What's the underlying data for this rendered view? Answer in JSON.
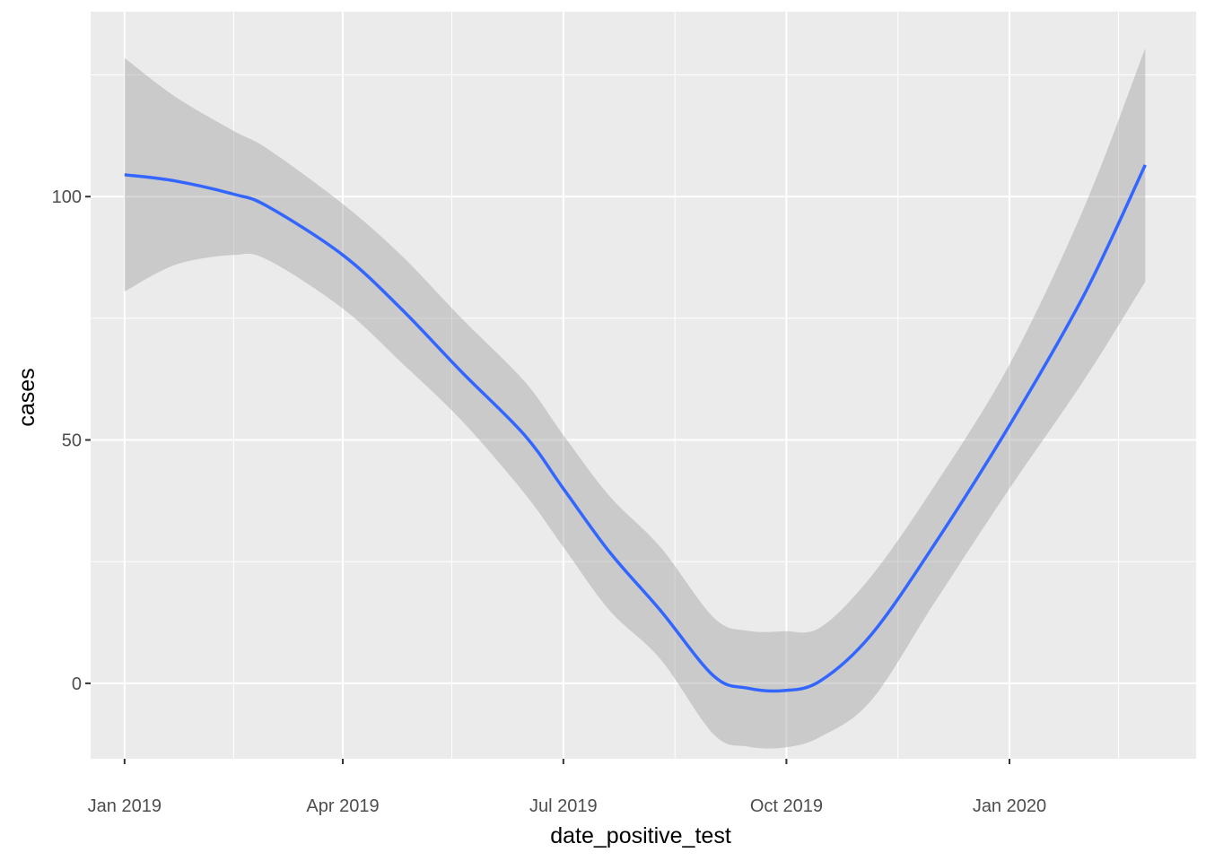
{
  "chart_data": {
    "type": "line",
    "title": "",
    "xlabel": "date_positive_test",
    "ylabel": "cases",
    "grid": true,
    "legend": "none",
    "xlim": [
      "2018-12-18",
      "2020-03-18"
    ],
    "ylim": [
      -15.5,
      138
    ],
    "x_ticks": [
      {
        "date": "2019-01-01",
        "label": "Jan 2019"
      },
      {
        "date": "2019-04-01",
        "label": "Apr 2019"
      },
      {
        "date": "2019-07-01",
        "label": "Jul 2019"
      },
      {
        "date": "2019-10-01",
        "label": "Oct 2019"
      },
      {
        "date": "2020-01-01",
        "label": "Jan 2020"
      }
    ],
    "x_minor_ticks": [
      "2019-02-15",
      "2019-05-16",
      "2019-08-16",
      "2019-11-16",
      "2020-02-15"
    ],
    "y_ticks": [
      0,
      50,
      100
    ],
    "y_minor_ticks": [
      25,
      75,
      125
    ],
    "series": [
      {
        "style": "smooth-with-confidence-band",
        "color": "#3366FF",
        "band_color": "#999999",
        "points": [
          {
            "x": "2019-01-01",
            "y": 104.5,
            "lo": 80.5,
            "hi": 128.5
          },
          {
            "x": "2019-01-22",
            "y": 103.2,
            "lo": 86.0,
            "hi": 120.5
          },
          {
            "x": "2019-02-15",
            "y": 100.5,
            "lo": 88.0,
            "hi": 113.5
          },
          {
            "x": "2019-03-01",
            "y": 98.0,
            "lo": 87.0,
            "hi": 109.8
          },
          {
            "x": "2019-04-01",
            "y": 88.0,
            "lo": 77.0,
            "hi": 98.5
          },
          {
            "x": "2019-04-25",
            "y": 77.0,
            "lo": 66.0,
            "hi": 88.0
          },
          {
            "x": "2019-05-20",
            "y": 64.0,
            "lo": 54.0,
            "hi": 75.0
          },
          {
            "x": "2019-06-15",
            "y": 51.0,
            "lo": 39.0,
            "hi": 62.0
          },
          {
            "x": "2019-07-01",
            "y": 40.0,
            "lo": 28.0,
            "hi": 51.0
          },
          {
            "x": "2019-07-20",
            "y": 27.0,
            "lo": 15.0,
            "hi": 38.5
          },
          {
            "x": "2019-08-10",
            "y": 15.0,
            "lo": 5.0,
            "hi": 28.0
          },
          {
            "x": "2019-09-01",
            "y": 1.5,
            "lo": -10.5,
            "hi": 13.5
          },
          {
            "x": "2019-09-15",
            "y": -1.0,
            "lo": -13.0,
            "hi": 10.8
          },
          {
            "x": "2019-09-30",
            "y": -1.5,
            "lo": -13.2,
            "hi": 10.7
          },
          {
            "x": "2019-10-15",
            "y": 0.5,
            "lo": -11.0,
            "hi": 11.5
          },
          {
            "x": "2019-11-05",
            "y": 10.0,
            "lo": -3.5,
            "hi": 22.0
          },
          {
            "x": "2019-12-01",
            "y": 28.5,
            "lo": 16.5,
            "hi": 40.5
          },
          {
            "x": "2020-01-01",
            "y": 53.0,
            "lo": 40.0,
            "hi": 65.5
          },
          {
            "x": "2020-02-01",
            "y": 80.0,
            "lo": 62.5,
            "hi": 98.0
          },
          {
            "x": "2020-02-26",
            "y": 106.5,
            "lo": 82.5,
            "hi": 130.5
          }
        ]
      }
    ]
  }
}
